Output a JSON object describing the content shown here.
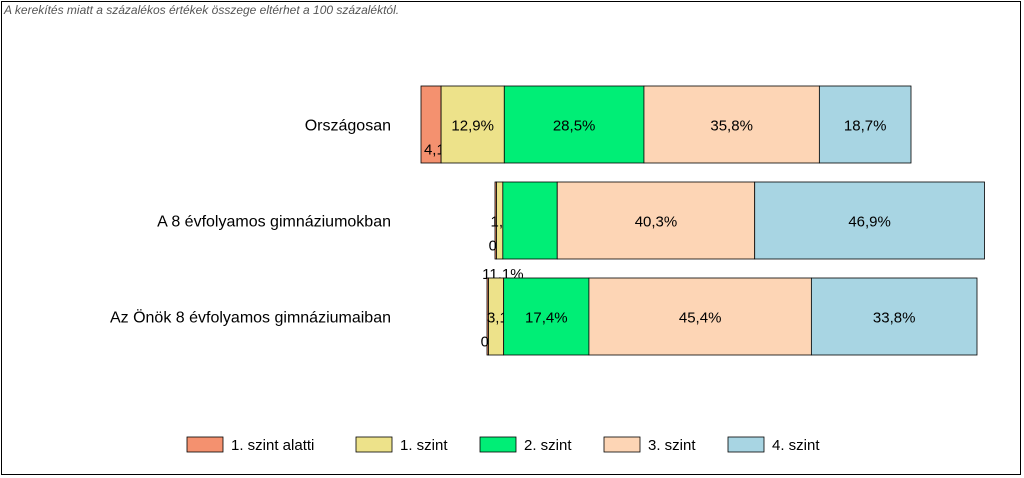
{
  "note": "A kerekítés miatt a  százalékos értékek összege eltérhet a 100 százaléktól.",
  "chart_data": {
    "type": "bar",
    "orientation": "horizontal",
    "stacked": true,
    "categories": [
      "Országosan",
      "A 8 évfolyamos gimnáziumokban",
      "Az Önök 8 évfolyamos gimnáziumaiban"
    ],
    "series": [
      {
        "name": "1. szint alatti",
        "color": "#F4916F",
        "values": [
          4.1,
          0.3,
          0.3
        ],
        "labels": [
          "4,1%",
          "0,3%",
          "0,3%"
        ]
      },
      {
        "name": "1. szint",
        "color": "#EDE28A",
        "values": [
          12.9,
          1.3,
          3.1
        ],
        "labels": [
          "12,9%",
          "1,3%",
          "3,1%"
        ]
      },
      {
        "name": "2. szint",
        "color": "#00EE76",
        "values": [
          28.5,
          11.1,
          17.4
        ],
        "labels": [
          "28,5%",
          "11,1%",
          "17,4%"
        ]
      },
      {
        "name": "3. szint",
        "color": "#FDD5B5",
        "values": [
          35.8,
          40.3,
          45.4
        ],
        "labels": [
          "35,8%",
          "40,3%",
          "45,4%"
        ]
      },
      {
        "name": "4. szint",
        "color": "#A8D5E3",
        "values": [
          18.7,
          46.9,
          33.8
        ],
        "labels": [
          "18,7%",
          "46,9%",
          "33,8%"
        ]
      }
    ],
    "legend_position": "bottom"
  }
}
